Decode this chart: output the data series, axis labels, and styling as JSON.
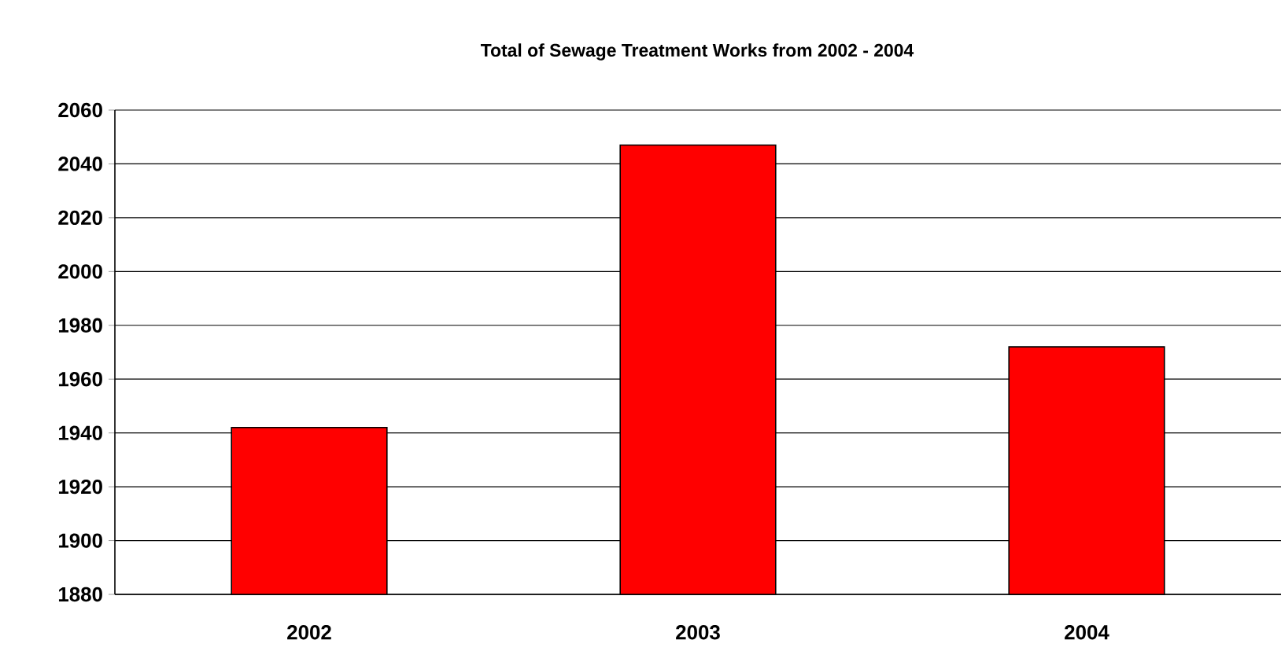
{
  "chart_data": {
    "type": "bar",
    "title": "Total of Sewage Treatment Works from 2002 - 2004",
    "categories": [
      "2002",
      "2003",
      "2004"
    ],
    "values": [
      1942,
      2047,
      1972
    ],
    "color": "#ff0000",
    "ylim": [
      1880,
      2060
    ],
    "yticks": [
      1880,
      1900,
      1920,
      1940,
      1960,
      1980,
      2000,
      2020,
      2040,
      2060
    ],
    "grid": "y"
  }
}
